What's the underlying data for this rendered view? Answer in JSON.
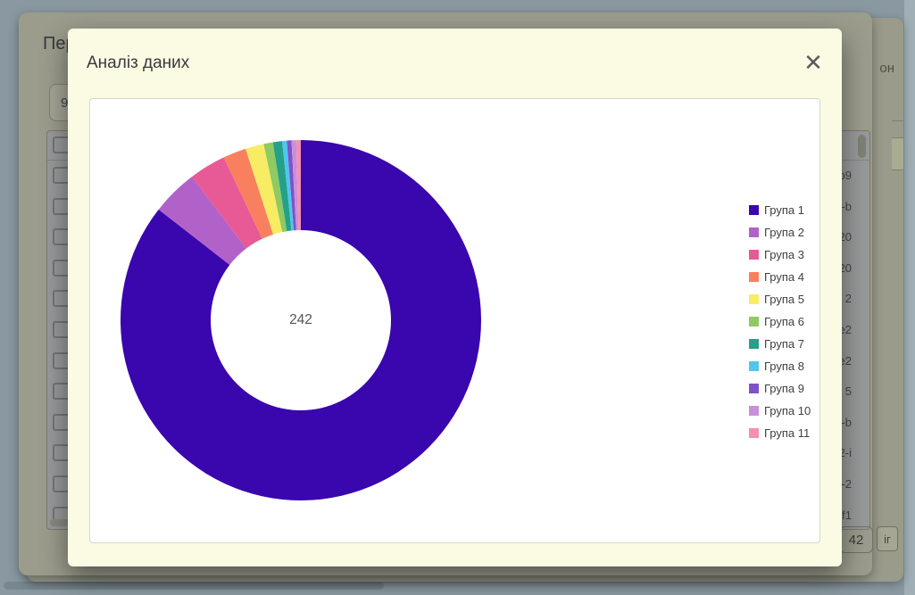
{
  "page": {
    "far_dialog": {
      "top_right_text": "он",
      "bottom_right_button_text": "іг"
    },
    "background_dialog": {
      "title": "Пер",
      "search_value": "9",
      "row_id_fragments": [
        "b9",
        "-b",
        "20",
        "20",
        "2",
        "e2",
        "e2",
        "5",
        "-b",
        "2-i",
        "-2",
        "f1"
      ],
      "total_box_text": "42"
    },
    "modal": {
      "title": "Аналіз даних",
      "close_icon": "✕"
    }
  },
  "chart_data": {
    "type": "pie",
    "subtype": "doughnut",
    "title": "Аналіз даних",
    "center_label": "242",
    "total": 242,
    "legend_position": "right",
    "categories": [
      "Група 1",
      "Група 2",
      "Група 3",
      "Група 4",
      "Група 5",
      "Група 6",
      "Група 7",
      "Група 8",
      "Група 9",
      "Група 10",
      "Група 11"
    ],
    "values": [
      207,
      10,
      8,
      5,
      4,
      2,
      2,
      1,
      1,
      1,
      1
    ],
    "colors": [
      "#3a06ae",
      "#b162c9",
      "#e85a96",
      "#f9805f",
      "#f8ec64",
      "#8fca62",
      "#25a189",
      "#52c5ef",
      "#7d53c8",
      "#c98fd9",
      "#f48fb2"
    ]
  },
  "theme": {
    "page_bg": "#8a99a1",
    "dialog_bg": "#9b9c8c",
    "modal_bg": "#fbfbe3",
    "card_bg": "#ffffff"
  }
}
